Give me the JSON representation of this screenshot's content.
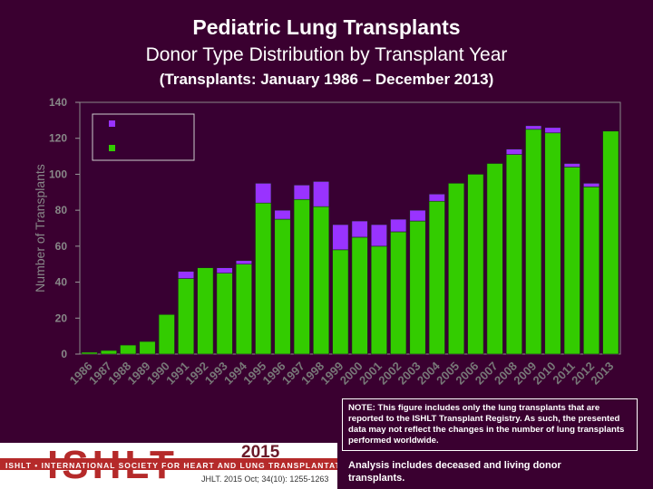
{
  "title": "Pediatric Lung Transplants",
  "subtitle": "Donor Type Distribution by Transplant Year",
  "subtitle2": "(Transplants: January 1986 – December 2013)",
  "note": "NOTE: This figure includes only the lung transplants that are reported to the ISHLT Transplant Registry. As such, the presented data may not reflect the changes in the number of lung transplants performed worldwide.",
  "analysis": "Analysis includes deceased and living donor transplants.",
  "logo": {
    "letters": "ISHLT",
    "society": "ISHLT • INTERNATIONAL SOCIETY FOR HEART AND LUNG TRANSPLANTATION",
    "year": "2015",
    "citation": "JHLT. 2015 Oct; 34(10): 1255-1263"
  },
  "colors": {
    "background": "#3a0030",
    "deceased": "#33cc00",
    "living": "#9933ff",
    "plot": "#380032"
  },
  "chart_data": {
    "type": "bar",
    "stacked": true,
    "ylabel": "Number of Transplants",
    "ylim": [
      0,
      140
    ],
    "yticks": [
      0,
      20,
      40,
      60,
      80,
      100,
      120,
      140
    ],
    "categories": [
      "1986",
      "1987",
      "1988",
      "1989",
      "1990",
      "1991",
      "1992",
      "1993",
      "1994",
      "1995",
      "1996",
      "1997",
      "1998",
      "1999",
      "2000",
      "2001",
      "2002",
      "2003",
      "2004",
      "2005",
      "2006",
      "2007",
      "2008",
      "2009",
      "2010",
      "2011",
      "2012",
      "2013"
    ],
    "series": [
      {
        "name": "",
        "color": "#33cc00",
        "values": [
          1,
          2,
          5,
          7,
          22,
          42,
          48,
          45,
          50,
          84,
          75,
          86,
          82,
          58,
          65,
          60,
          68,
          74,
          85,
          95,
          100,
          106,
          111,
          125,
          123,
          104,
          93,
          124
        ]
      },
      {
        "name": "",
        "color": "#9933ff",
        "values": [
          0,
          0,
          0,
          0,
          0,
          4,
          0,
          3,
          2,
          11,
          5,
          8,
          14,
          14,
          9,
          12,
          7,
          6,
          4,
          0,
          0,
          0,
          3,
          2,
          3,
          2,
          2,
          0
        ]
      }
    ],
    "legend": "top-left",
    "grid": false
  }
}
